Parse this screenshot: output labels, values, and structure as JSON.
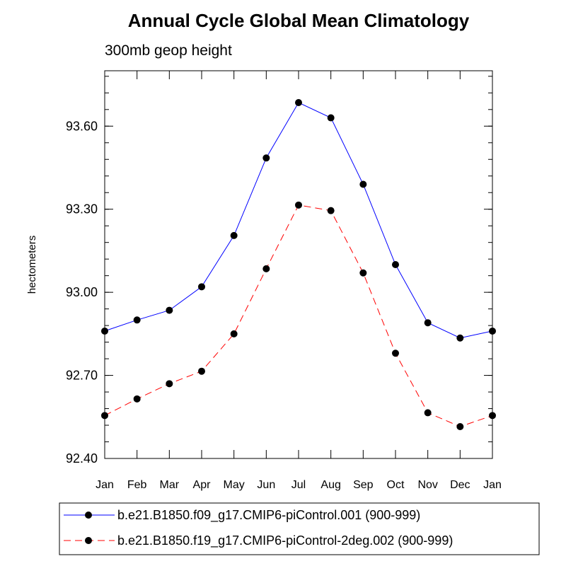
{
  "chart_data": {
    "type": "line",
    "title": "Annual Cycle Global Mean Climatology",
    "subtitle": "300mb geop height",
    "xlabel": "",
    "ylabel": "hectometers",
    "categories": [
      "Jan",
      "Feb",
      "Mar",
      "Apr",
      "May",
      "Jun",
      "Jul",
      "Aug",
      "Sep",
      "Oct",
      "Nov",
      "Dec",
      "Jan"
    ],
    "yticks": [
      "92.40",
      "92.70",
      "93.00",
      "93.30",
      "93.60"
    ],
    "ylim": [
      92.4,
      93.8
    ],
    "grid": false,
    "legend_position": "bottom",
    "series": [
      {
        "name": "b.e21.B1850.f09_g17.CMIP6-piControl.001 (900-999)",
        "color": "#0000ff",
        "dash": "solid",
        "marker": "filled-circle",
        "values": [
          92.86,
          92.9,
          92.935,
          93.02,
          93.205,
          93.485,
          93.685,
          93.63,
          93.39,
          93.1,
          92.89,
          92.835,
          92.86
        ]
      },
      {
        "name": "b.e21.B1850.f19_g17.CMIP6-piControl-2deg.002 (900-999)",
        "color": "#ff0000",
        "dash": "dashed",
        "marker": "filled-circle",
        "values": [
          92.555,
          92.615,
          92.67,
          92.715,
          92.85,
          93.085,
          93.315,
          93.295,
          93.07,
          92.78,
          92.565,
          92.515,
          92.555
        ]
      }
    ]
  }
}
